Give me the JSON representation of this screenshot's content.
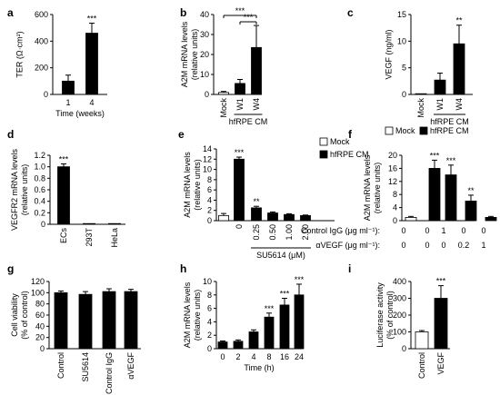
{
  "colors": {
    "filled": "#000000",
    "open": "#ffffff",
    "stroke": "#000000"
  },
  "chart_data": [
    {
      "panel": "a",
      "type": "bar",
      "ylabel": "TER (Ω·cm²)",
      "xlabel": "Time (weeks)",
      "categories": [
        "1",
        "4"
      ],
      "values": [
        100,
        460
      ],
      "errors": [
        45,
        75
      ],
      "fill": [
        "filled",
        "filled"
      ],
      "ylim": [
        0,
        600
      ],
      "yticks": [
        0,
        200,
        400,
        600
      ],
      "ytick_labels": [
        "0",
        "200",
        "400",
        "600"
      ],
      "stars": [
        {
          "bar": 1,
          "text": "***"
        }
      ]
    },
    {
      "panel": "b",
      "type": "bar",
      "ylabel": "A2M mRNA levels (relative units)",
      "group_label": "hfRPE CM",
      "categories": [
        "Mock",
        "W1",
        "W4"
      ],
      "values": [
        1,
        5.5,
        23.5
      ],
      "errors": [
        0.5,
        2,
        11
      ],
      "fill": [
        "open",
        "filled",
        "filled"
      ],
      "ylim": [
        0,
        40
      ],
      "yticks": [
        0,
        10,
        20,
        30,
        40
      ],
      "ytick_labels": [
        "0",
        "10",
        "20",
        "30",
        "40"
      ],
      "brackets": [
        {
          "from": 0,
          "to": 2,
          "text": "***"
        },
        {
          "from": 1,
          "to": 2,
          "text": "***"
        }
      ]
    },
    {
      "panel": "c",
      "type": "bar",
      "ylabel": "VEGF (ng/ml)",
      "group_label": "hfRPE CM",
      "categories": [
        "Mock",
        "W1",
        "W4"
      ],
      "values": [
        0,
        2.7,
        9.5
      ],
      "errors": [
        0,
        1.3,
        3.5
      ],
      "fill": [
        "open",
        "filled",
        "filled"
      ],
      "ylim": [
        0,
        15
      ],
      "yticks": [
        0,
        5,
        10,
        15
      ],
      "ytick_labels": [
        "0",
        "5",
        "10",
        "15"
      ],
      "stars": [
        {
          "bar": 2,
          "text": "**"
        }
      ]
    },
    {
      "panel": "d",
      "type": "bar",
      "ylabel": "VEGFR2 mRNA levels (relative units)",
      "categories": [
        "ECs",
        "293T",
        "HeLa"
      ],
      "values": [
        1.0,
        0.01,
        0.01
      ],
      "errors": [
        0.05,
        0,
        0
      ],
      "fill": [
        "filled",
        "filled",
        "filled"
      ],
      "ylim": [
        0,
        1.2
      ],
      "yticks": [
        0,
        0.2,
        0.4,
        0.6,
        0.8,
        1.0,
        1.2
      ],
      "ytick_labels": [
        "0",
        "0.2",
        "0.4",
        "0.6",
        "0.8",
        "1.0",
        "1.2"
      ],
      "stars": [
        {
          "bar": 0,
          "text": "***"
        }
      ]
    },
    {
      "panel": "e",
      "type": "bar",
      "ylabel": "A2M mRNA levels (relative units)",
      "legend": [
        {
          "fill": "open",
          "text": "Mock"
        },
        {
          "fill": "filled",
          "text": "hfRPE CM"
        }
      ],
      "categories": [
        "",
        "0",
        "0.25",
        "0.50",
        "1.00",
        "2.00"
      ],
      "values": [
        1,
        12,
        2.5,
        1.5,
        1.2,
        1.0
      ],
      "errors": [
        0.4,
        0.4,
        0.3,
        0.2,
        0.15,
        0.1
      ],
      "fill": [
        "open",
        "filled",
        "filled",
        "filled",
        "filled",
        "filled"
      ],
      "ylim": [
        0,
        14
      ],
      "yticks": [
        0,
        2,
        4,
        6,
        8,
        10,
        12,
        14
      ],
      "ytick_labels": [
        "0",
        "2",
        "4",
        "6",
        "8",
        "10",
        "12",
        "14"
      ],
      "stars": [
        {
          "bar": 1,
          "text": "***"
        },
        {
          "bar": 2,
          "text": "**"
        }
      ],
      "bottom_label": "SU5614 (μM)"
    },
    {
      "panel": "f",
      "type": "bar",
      "ylabel": "A2M mRNA levels (relative units)",
      "legend": [
        {
          "fill": "open",
          "text": "Mock"
        },
        {
          "fill": "filled",
          "text": "hfRPE CM"
        }
      ],
      "values": [
        1,
        16,
        14,
        6,
        1
      ],
      "errors": [
        0.3,
        2.5,
        3,
        1.8,
        0.3
      ],
      "fill": [
        "open",
        "filled",
        "filled",
        "filled",
        "filled"
      ],
      "ylim": [
        0,
        20
      ],
      "yticks": [
        0,
        4,
        8,
        12,
        16,
        20
      ],
      "ytick_labels": [
        "0",
        "4",
        "8",
        "12",
        "16",
        "20"
      ],
      "stars": [
        {
          "bar": 1,
          "text": "***"
        },
        {
          "bar": 2,
          "text": "***"
        },
        {
          "bar": 3,
          "text": "**"
        }
      ],
      "table": [
        {
          "label": "Control IgG (μg ml⁻¹):",
          "cells": [
            "0",
            "0",
            "1",
            "0",
            "0"
          ]
        },
        {
          "label": "αVEGF (μg ml⁻¹):",
          "cells": [
            "0",
            "0",
            "0",
            "0.2",
            "1"
          ]
        }
      ]
    },
    {
      "panel": "g",
      "type": "bar",
      "ylabel": "Cell viability (% of control)",
      "categories": [
        "Control",
        "SU5614",
        "Control IgG",
        "αVEGF"
      ],
      "values": [
        100,
        97,
        102,
        102
      ],
      "errors": [
        3,
        5,
        5,
        4
      ],
      "fill": [
        "filled",
        "filled",
        "filled",
        "filled"
      ],
      "ylim": [
        0,
        120
      ],
      "yticks": [
        0,
        20,
        40,
        60,
        80,
        100,
        120
      ],
      "ytick_labels": [
        "0",
        "20",
        "40",
        "60",
        "80",
        "100",
        "120"
      ]
    },
    {
      "panel": "h",
      "type": "bar",
      "ylabel": "A2M mRNA levels (relative units)",
      "xlabel": "Time (h)",
      "categories": [
        "0",
        "2",
        "4",
        "8",
        "16",
        "24"
      ],
      "values": [
        1,
        1.1,
        2.5,
        4.7,
        6.5,
        8
      ],
      "errors": [
        0.15,
        0.2,
        0.3,
        0.6,
        1.0,
        1.6
      ],
      "fill": [
        "filled",
        "filled",
        "filled",
        "filled",
        "filled",
        "filled"
      ],
      "ylim": [
        0,
        10
      ],
      "yticks": [
        0,
        2,
        4,
        6,
        8,
        10
      ],
      "ytick_labels": [
        "0",
        "2",
        "4",
        "6",
        "8",
        "10"
      ],
      "stars": [
        {
          "bar": 3,
          "text": "***"
        },
        {
          "bar": 4,
          "text": "***"
        },
        {
          "bar": 5,
          "text": "***"
        }
      ]
    },
    {
      "panel": "i",
      "type": "bar",
      "ylabel": "Luciferase activity (% of control)",
      "categories": [
        "Control",
        "VEGF"
      ],
      "values": [
        100,
        300
      ],
      "errors": [
        8,
        75
      ],
      "fill": [
        "open",
        "filled"
      ],
      "ylim": [
        0,
        400
      ],
      "yticks": [
        0,
        100,
        200,
        300,
        400
      ],
      "ytick_labels": [
        "0",
        "100",
        "200",
        "300",
        "400"
      ],
      "stars": [
        {
          "bar": 1,
          "text": "***"
        }
      ]
    }
  ]
}
